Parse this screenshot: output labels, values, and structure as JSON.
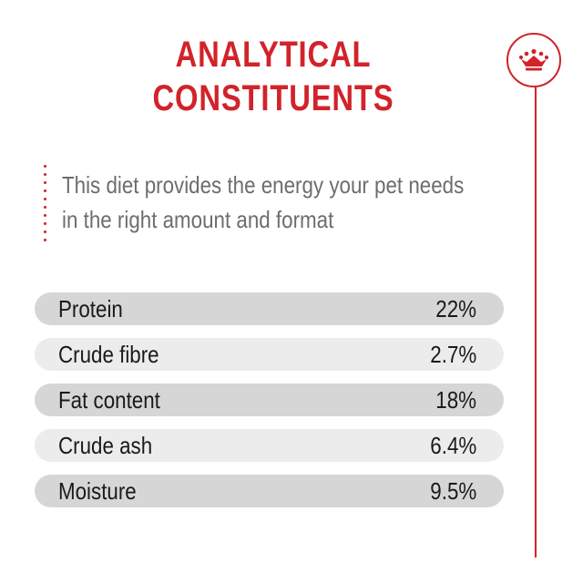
{
  "title": {
    "line1": "ANALYTICAL",
    "line2": "CONSTITUENTS"
  },
  "intro": {
    "line1": "This diet provides the energy your pet needs",
    "line2": "in the right amount and format"
  },
  "logo": {
    "icon": "crown-icon"
  },
  "colors": {
    "accent": "#d2232a",
    "row_dark": "#d6d6d6",
    "row_light": "#ececec",
    "intro_text": "#6d6d6d"
  },
  "constituents": [
    {
      "label": "Protein",
      "value": "22%"
    },
    {
      "label": "Crude fibre",
      "value": "2.7%"
    },
    {
      "label": "Fat content",
      "value": "18%"
    },
    {
      "label": "Crude ash",
      "value": "6.4%"
    },
    {
      "label": "Moisture",
      "value": "9.5%"
    }
  ]
}
